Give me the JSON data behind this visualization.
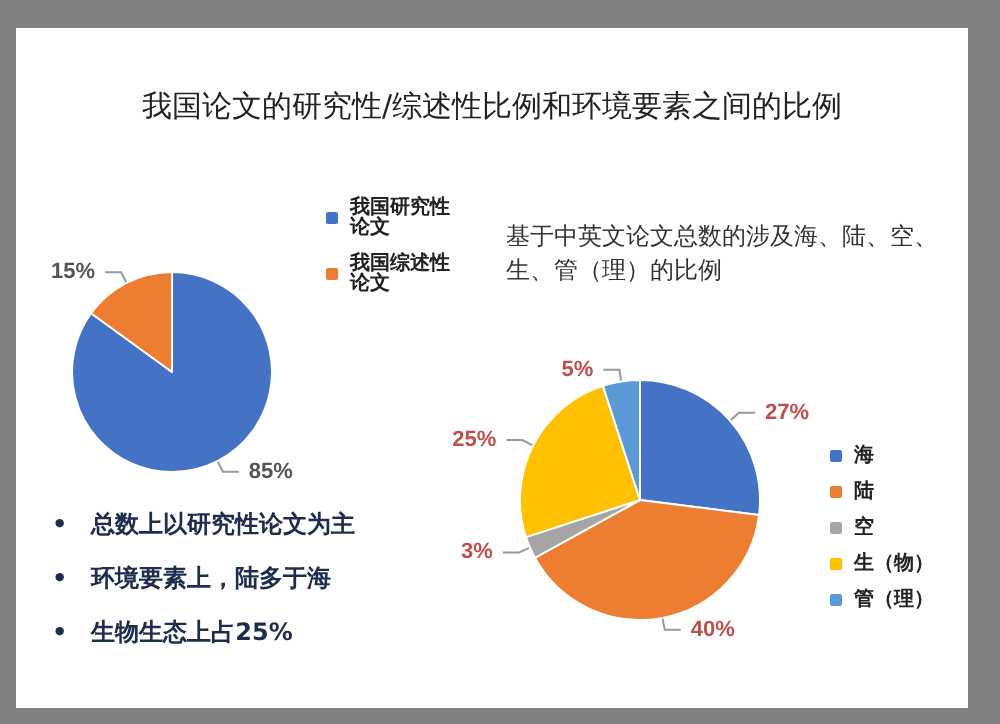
{
  "chart_data": [
    {
      "type": "pie",
      "title": "我国论文的研究性/综述性比例和环境要素之间的比例",
      "categories": [
        "我国研究性论文",
        "我国综述性论文"
      ],
      "values": [
        85,
        15
      ],
      "colors": [
        "#4472c4",
        "#ed7d31"
      ],
      "value_labels": [
        "85%",
        "15%"
      ],
      "legend": "top right",
      "annotations": [
        "•　总数上以研究性论文为主",
        "•　环境要素上，陆多于海",
        "•　生物生态上占25%"
      ]
    },
    {
      "type": "pie",
      "title": "基于中英文论文总数的涉及海、陆、空、生、管（理）的比例",
      "categories": [
        "海",
        "陆",
        "空",
        "生（物）",
        "管（理）"
      ],
      "values": [
        27,
        40,
        3,
        25,
        5
      ],
      "colors": [
        "#4472c4",
        "#ed7d31",
        "#a5a5a5",
        "#ffc000",
        "#5b9bd5"
      ],
      "value_labels": [
        "27%",
        "40%",
        "3%",
        "25%",
        "5%"
      ],
      "legend": "right"
    }
  ]
}
